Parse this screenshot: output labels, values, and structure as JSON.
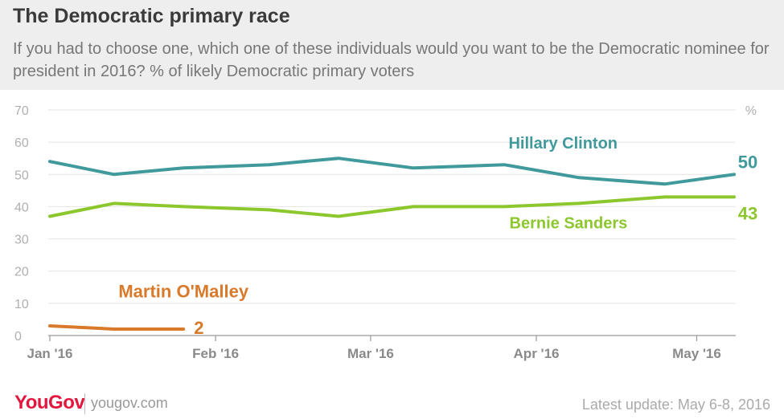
{
  "header": {
    "title": "The Democratic primary race",
    "subtitle": "If you had to choose one, which one of these individuals would you want to be the Democratic nominee for president in 2016? % of likely Democratic primary voters"
  },
  "footer": {
    "brand": "YouGov",
    "site": "yougov.com",
    "update": "Latest update: May 6-8, 2016"
  },
  "chart_data": {
    "type": "line",
    "ylim": [
      0,
      70
    ],
    "yticks": [
      0,
      10,
      20,
      30,
      40,
      50,
      60,
      70
    ],
    "unit_label": "%",
    "xlim": [
      "2016-01-01",
      "2016-05-08"
    ],
    "xticks": [
      {
        "date": "2016-01-01",
        "label": "Jan '16"
      },
      {
        "date": "2016-02-01",
        "label": "Feb '16"
      },
      {
        "date": "2016-03-01",
        "label": "Mar '16"
      },
      {
        "date": "2016-04-01",
        "label": "Apr '16"
      },
      {
        "date": "2016-05-01",
        "label": "May '16"
      }
    ],
    "grid": true,
    "series": [
      {
        "name": "Hillary Clinton",
        "color": "#40999b",
        "end_label": "50",
        "points": [
          [
            "2016-01-01",
            54
          ],
          [
            "2016-01-13",
            50
          ],
          [
            "2016-01-26",
            52
          ],
          [
            "2016-02-11",
            53
          ],
          [
            "2016-02-24",
            55
          ],
          [
            "2016-03-09",
            52
          ],
          [
            "2016-03-26",
            53
          ],
          [
            "2016-04-09",
            49
          ],
          [
            "2016-04-25",
            47
          ],
          [
            "2016-05-08",
            50
          ]
        ]
      },
      {
        "name": "Bernie Sanders",
        "color": "#8dc72e",
        "end_label": "43",
        "points": [
          [
            "2016-01-01",
            37
          ],
          [
            "2016-01-13",
            41
          ],
          [
            "2016-01-26",
            40
          ],
          [
            "2016-02-11",
            39
          ],
          [
            "2016-02-24",
            37
          ],
          [
            "2016-03-09",
            40
          ],
          [
            "2016-03-26",
            40
          ],
          [
            "2016-04-09",
            41
          ],
          [
            "2016-04-25",
            43
          ],
          [
            "2016-05-08",
            43
          ]
        ]
      },
      {
        "name": "Martin O'Malley",
        "color": "#d97a2b",
        "end_label": "2",
        "points": [
          [
            "2016-01-01",
            3
          ],
          [
            "2016-01-13",
            2
          ],
          [
            "2016-01-26",
            2
          ]
        ]
      }
    ]
  }
}
